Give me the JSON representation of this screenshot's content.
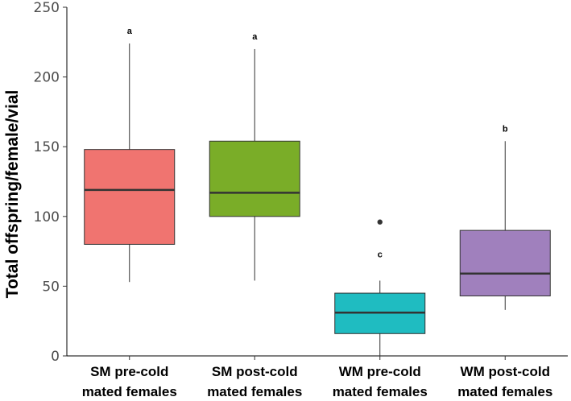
{
  "chart_data": {
    "type": "boxplot",
    "title": "",
    "xlabel": "",
    "ylabel": "Total offspring/female/vial",
    "ylim": [
      0,
      250
    ],
    "yticks": [
      "0",
      "50",
      "100",
      "150",
      "200",
      "250"
    ],
    "groups": [
      {
        "label_line1": "SM pre-cold",
        "label_line2": "mated females",
        "color": "#f07470",
        "whisker_low": 53,
        "q1": 80,
        "median": 119,
        "q3": 148,
        "whisker_high": 224,
        "outliers": [],
        "sig": "a"
      },
      {
        "label_line1": "SM post-cold",
        "label_line2": "mated females",
        "color": "#7aad28",
        "whisker_low": 54,
        "q1": 100,
        "median": 117,
        "q3": 154,
        "whisker_high": 220,
        "outliers": [],
        "sig": "a"
      },
      {
        "label_line1": "WM pre-cold",
        "label_line2": "mated females",
        "color": "#1fbcc1",
        "whisker_low": 0,
        "q1": 16,
        "median": 31,
        "q3": 45,
        "whisker_high": 54,
        "outliers": [
          96
        ],
        "sig": "c"
      },
      {
        "label_line1": "WM post-cold",
        "label_line2": "mated females",
        "color": "#a080bd",
        "whisker_low": 33,
        "q1": 43,
        "median": 59,
        "q3": 90,
        "whisker_high": 154,
        "outliers": [],
        "sig": "b"
      }
    ]
  }
}
